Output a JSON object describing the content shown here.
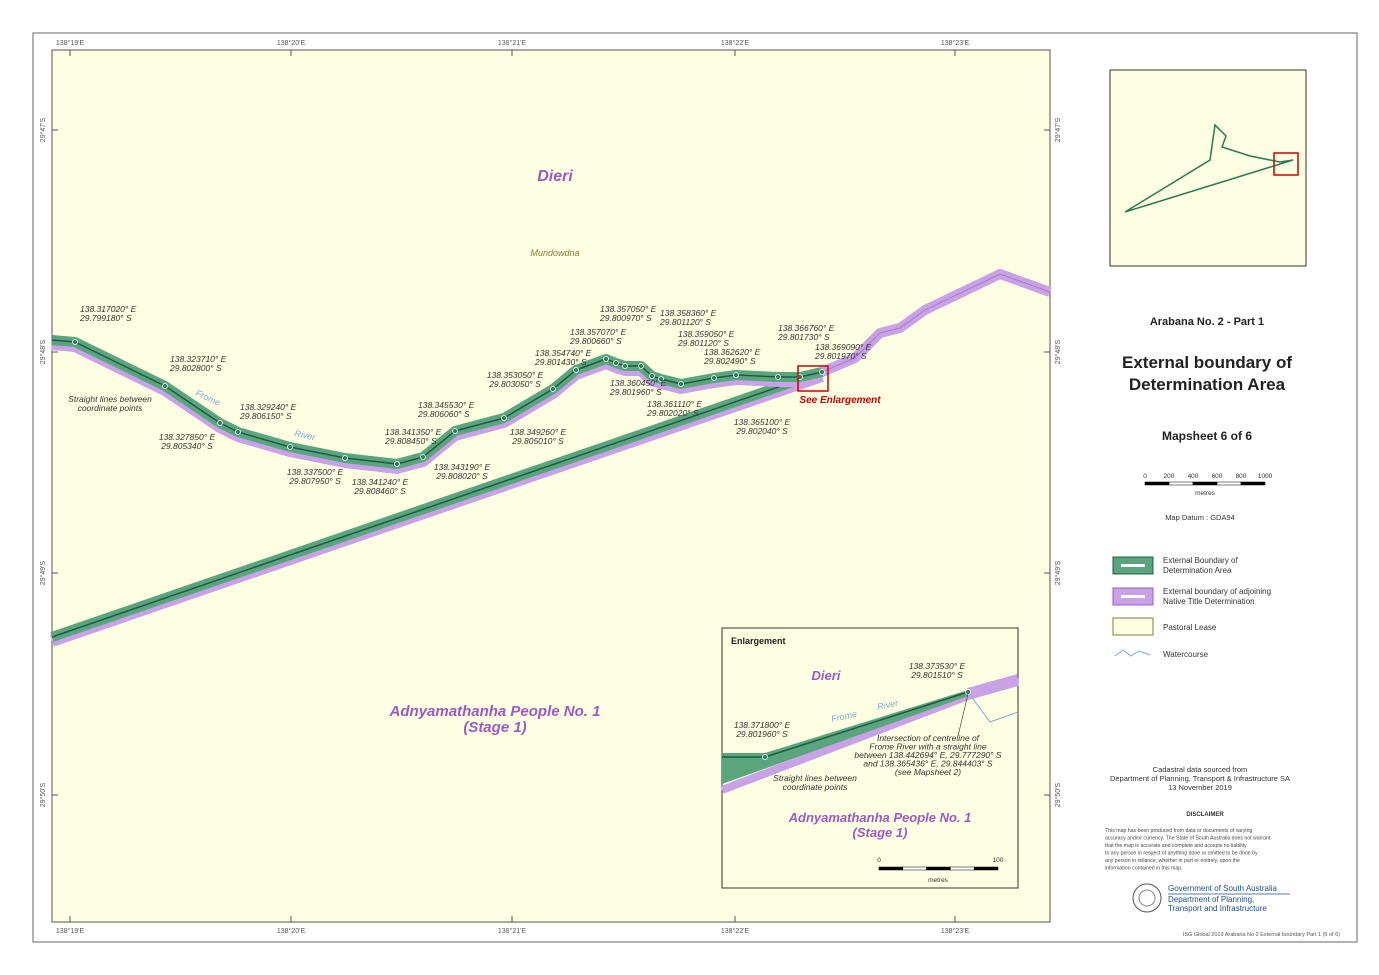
{
  "graticule": {
    "longitudes": [
      "138°19'E",
      "138°20'E",
      "138°21'E",
      "138°22'E",
      "138°23'E"
    ],
    "latitudes": [
      "29°47'S",
      "29°48'S",
      "29°49'S",
      "29°50'S"
    ]
  },
  "main_map": {
    "regions": [
      {
        "lines": [
          "Dieri"
        ]
      },
      {
        "lines": [
          "Mundowdna"
        ]
      },
      {
        "lines": [
          "Adnyamathanha People No. 1",
          "(Stage 1)"
        ]
      }
    ],
    "river": [
      "Frome",
      "River"
    ],
    "note": [
      "Straight lines between",
      "coordinate points"
    ],
    "enlargement_link": "See Enlargement",
    "points": [
      {
        "lines": [
          "138.317020° E",
          "29.799180° S"
        ]
      },
      {
        "lines": [
          "138.323710° E",
          "29.802800° S"
        ]
      },
      {
        "lines": [
          "138.327850° E",
          "29.805340° S"
        ]
      },
      {
        "lines": [
          "138.329240° E",
          "29.806150° S"
        ]
      },
      {
        "lines": [
          "138.337500° E",
          "29.807950° S"
        ]
      },
      {
        "lines": [
          "138.341350° E",
          "29.808450° S"
        ]
      },
      {
        "lines": [
          "138.341240° E",
          "29.808460° S"
        ]
      },
      {
        "lines": [
          "138.343190° E",
          "29.808020° S"
        ]
      },
      {
        "lines": [
          "138.345530° E",
          "29.806060° S"
        ]
      },
      {
        "lines": [
          "138.349260° E",
          "29.805010° S"
        ]
      },
      {
        "lines": [
          "138.353050° E",
          "29.803050° S"
        ]
      },
      {
        "lines": [
          "138.354740° E",
          "29.801430° S"
        ]
      },
      {
        "lines": [
          "138.357070° E",
          "29.800660° S"
        ]
      },
      {
        "lines": [
          "138.357050° E",
          "29.800970° S"
        ]
      },
      {
        "lines": [
          "138.358360° E",
          "29.801120° S"
        ]
      },
      {
        "lines": [
          "138.359050° E",
          "29.801120° S"
        ]
      },
      {
        "lines": [
          "138.360450° E",
          "29.801960° S"
        ]
      },
      {
        "lines": [
          "138.361110° E",
          "29.802020° S"
        ]
      },
      {
        "lines": [
          "138.362620° E",
          "29.802490° S"
        ]
      },
      {
        "lines": [
          "138.366760° E",
          "29.801730° S"
        ]
      },
      {
        "lines": [
          "138.369090° E",
          "29.801970° S"
        ]
      },
      {
        "lines": [
          "138.365100° E",
          "29.802040° S"
        ]
      }
    ]
  },
  "panel": {
    "project": "Arabana No. 2 - Part 1",
    "title": [
      "External boundary of",
      "Determination Area"
    ],
    "mapsheet": "Mapsheet 6 of 6",
    "scale": {
      "ticks": [
        "0",
        "200",
        "400",
        "600",
        "800",
        "1000"
      ],
      "unit": "metres"
    },
    "datum": "Map Datum : GDA94",
    "legend": [
      {
        "label": [
          "External Boundary of",
          "Determination Area"
        ]
      },
      {
        "label": [
          "External boundary of adjoining",
          "Native Title Determination"
        ]
      },
      {
        "label": [
          "Pastoral Lease"
        ]
      },
      {
        "label": [
          "Watercourse"
        ]
      }
    ],
    "source": [
      "Cadastral data sourced from",
      "Department of Planning, Transport & Infrastructure SA",
      "13 November 2019"
    ],
    "disclaimer": {
      "heading": "DISCLAIMER",
      "text": [
        "This map has been produced from data or documents of varying",
        "accuracy and/or currency. The State of South Australia does not warrant",
        "that the map is accurate and complete and accepts no liability",
        "to any person in respect of anything done or omitted to be done by",
        "any person in reliance, whether in part or entirely, upon the",
        "information contained in this map."
      ]
    },
    "agency": [
      "Government of South Australia",
      "Department of Planning,",
      "Transport and Infrastructure"
    ],
    "footer": "ISG Global 2019 Arabana No 2 External boundary Part 1 (6 of 6)"
  },
  "enlargement": {
    "title": "Enlargement",
    "regions": [
      {
        "lines": [
          "Dieri"
        ]
      },
      {
        "lines": [
          "Adnyamathanha People No. 1",
          "(Stage 1)"
        ]
      }
    ],
    "river": [
      "Frome",
      "River"
    ],
    "points": [
      {
        "lines": [
          "138.373530° E",
          "29.801510° S"
        ]
      },
      {
        "lines": [
          "138.371800° E",
          "29.801960° S"
        ]
      }
    ],
    "intersection_note": [
      "Intersection of centreline of",
      "Frome River with a straight line",
      "between 138.442694° E, 29.777290° S",
      "and 138.365436° E, 29.844403° S",
      "(see Mapsheet 2)"
    ],
    "note": [
      "Straight lines between",
      "coordinate points"
    ],
    "scale": {
      "ticks": [
        "0",
        "100"
      ],
      "unit": "metres"
    }
  }
}
